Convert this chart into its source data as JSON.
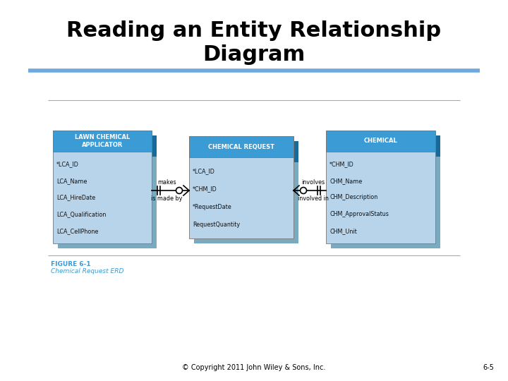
{
  "title_line1": "Reading an Entity Relationship",
  "title_line2": "Diagram",
  "title_fontsize": 22,
  "divider_color": "#6FA8DC",
  "bg_color": "#FFFFFF",
  "footer_copyright": "© Copyright 2011 John Wiley & Sons, Inc.",
  "footer_page": "6-5",
  "figure_label": "FIGURE 6-1",
  "figure_caption": "Chemical Request ERD",
  "entity1_title": "LAWN CHEMICAL\nAPPLICATOR",
  "entity1_fields": [
    "*LCA_ID",
    "LCA_Name",
    "LCA_HireDate",
    "LCA_Qualification",
    "LCA_CellPhone"
  ],
  "entity2_title": "CHEMICAL REQUEST",
  "entity2_fields": [
    "*LCA_ID",
    "*CHM_ID",
    "*RequestDate",
    "RequestQuantity"
  ],
  "entity3_title": "CHEMICAL",
  "entity3_fields": [
    "*CHM_ID",
    "CHM_Name",
    "CHM_Description",
    "CHM_ApprovalStatus",
    "CHM_Unit"
  ],
  "header_bg": "#3A9BD5",
  "body_bg": "#B8D4EA",
  "shadow_color": "#7AAABF",
  "shadow_header_color": "#1A6A99",
  "rel1_top_label": "makes",
  "rel1_bottom_label": "is made by",
  "rel2_top_label": "involves",
  "rel2_bottom_label": "involved in",
  "line_color": "#000000",
  "border_color_dark": "#5A8FAA",
  "figure_label_color": "#3A9BD5",
  "figure_caption_color": "#3A9BD5"
}
